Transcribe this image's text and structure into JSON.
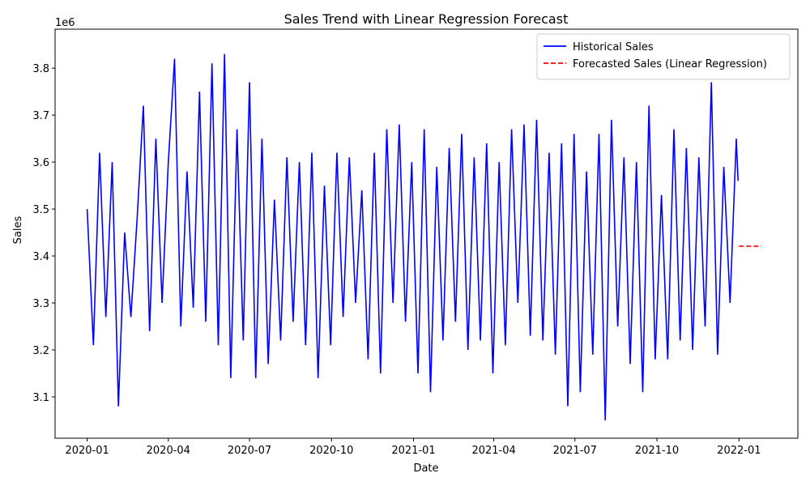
{
  "chart_data": {
    "type": "line",
    "title": "Sales Trend with Linear Regression Forecast",
    "x_label": "Date",
    "y_label": "Sales",
    "y_offset_label": "1e6",
    "legend": "upper right",
    "grid": false,
    "xlim": [
      "2019-11-26",
      "2022-03-08"
    ],
    "xticks": [
      {
        "value": "2020-01-01",
        "label": "2020-01"
      },
      {
        "value": "2020-04-01",
        "label": "2020-04"
      },
      {
        "value": "2020-07-01",
        "label": "2020-07"
      },
      {
        "value": "2020-10-01",
        "label": "2020-10"
      },
      {
        "value": "2021-01-01",
        "label": "2021-01"
      },
      {
        "value": "2021-04-01",
        "label": "2021-04"
      },
      {
        "value": "2021-07-01",
        "label": "2021-07"
      },
      {
        "value": "2021-10-01",
        "label": "2021-10"
      },
      {
        "value": "2022-01-01",
        "label": "2022-01"
      }
    ],
    "ylim": [
      3.012,
      3.883
    ],
    "yticks": [
      3.1,
      3.2,
      3.3,
      3.4,
      3.5,
      3.6,
      3.7,
      3.8
    ],
    "series": [
      {
        "name": "Historical Sales",
        "color": "#0000ff",
        "dash": "solid",
        "x": [
          "2020-01-01",
          "2020-01-08",
          "2020-01-15",
          "2020-01-22",
          "2020-01-29",
          "2020-02-05",
          "2020-02-12",
          "2020-02-19",
          "2020-02-26",
          "2020-03-04",
          "2020-03-11",
          "2020-03-18",
          "2020-03-25",
          "2020-04-01",
          "2020-04-08",
          "2020-04-15",
          "2020-04-22",
          "2020-04-29",
          "2020-05-06",
          "2020-05-13",
          "2020-05-20",
          "2020-05-27",
          "2020-06-03",
          "2020-06-10",
          "2020-06-17",
          "2020-06-24",
          "2020-07-01",
          "2020-07-08",
          "2020-07-15",
          "2020-07-22",
          "2020-07-29",
          "2020-08-05",
          "2020-08-12",
          "2020-08-19",
          "2020-08-26",
          "2020-09-02",
          "2020-09-09",
          "2020-09-16",
          "2020-09-23",
          "2020-09-30",
          "2020-10-07",
          "2020-10-14",
          "2020-10-21",
          "2020-10-28",
          "2020-11-04",
          "2020-11-11",
          "2020-11-18",
          "2020-11-25",
          "2020-12-02",
          "2020-12-09",
          "2020-12-16",
          "2020-12-23",
          "2020-12-30",
          "2021-01-06",
          "2021-01-13",
          "2021-01-20",
          "2021-01-27",
          "2021-02-03",
          "2021-02-10",
          "2021-02-17",
          "2021-02-24",
          "2021-03-03",
          "2021-03-10",
          "2021-03-17",
          "2021-03-24",
          "2021-03-31",
          "2021-04-07",
          "2021-04-14",
          "2021-04-21",
          "2021-04-28",
          "2021-05-05",
          "2021-05-12",
          "2021-05-19",
          "2021-05-26",
          "2021-06-02",
          "2021-06-09",
          "2021-06-16",
          "2021-06-23",
          "2021-06-30",
          "2021-07-07",
          "2021-07-14",
          "2021-07-21",
          "2021-07-28",
          "2021-08-04",
          "2021-08-11",
          "2021-08-18",
          "2021-08-25",
          "2021-09-01",
          "2021-09-08",
          "2021-09-15",
          "2021-09-22",
          "2021-09-29",
          "2021-10-06",
          "2021-10-13",
          "2021-10-20",
          "2021-10-27",
          "2021-11-03",
          "2021-11-10",
          "2021-11-17",
          "2021-11-24",
          "2021-12-01",
          "2021-12-08",
          "2021-12-15",
          "2021-12-22",
          "2021-12-29",
          "2021-12-31"
        ],
        "values": [
          3.5,
          3.21,
          3.62,
          3.27,
          3.6,
          3.08,
          3.45,
          3.27,
          3.48,
          3.72,
          3.24,
          3.65,
          3.3,
          3.6,
          3.82,
          3.25,
          3.58,
          3.29,
          3.75,
          3.26,
          3.81,
          3.21,
          3.83,
          3.14,
          3.67,
          3.22,
          3.77,
          3.14,
          3.65,
          3.17,
          3.52,
          3.22,
          3.61,
          3.26,
          3.6,
          3.21,
          3.62,
          3.14,
          3.55,
          3.21,
          3.62,
          3.27,
          3.61,
          3.3,
          3.54,
          3.18,
          3.62,
          3.15,
          3.67,
          3.3,
          3.68,
          3.26,
          3.6,
          3.15,
          3.67,
          3.11,
          3.59,
          3.22,
          3.63,
          3.26,
          3.66,
          3.2,
          3.61,
          3.22,
          3.64,
          3.15,
          3.6,
          3.21,
          3.67,
          3.3,
          3.68,
          3.23,
          3.69,
          3.22,
          3.62,
          3.19,
          3.64,
          3.08,
          3.66,
          3.11,
          3.58,
          3.19,
          3.66,
          3.05,
          3.69,
          3.25,
          3.61,
          3.17,
          3.6,
          3.11,
          3.72,
          3.18,
          3.53,
          3.18,
          3.67,
          3.22,
          3.63,
          3.2,
          3.61,
          3.25,
          3.77,
          3.19,
          3.59,
          3.3,
          3.65,
          3.56
        ]
      },
      {
        "name": "Forecasted Sales (Linear Regression)",
        "color": "#ff0000",
        "dash": "dashed",
        "x": [
          "2022-01-01",
          "2022-01-26"
        ],
        "values": [
          3.421,
          3.421
        ]
      }
    ]
  }
}
